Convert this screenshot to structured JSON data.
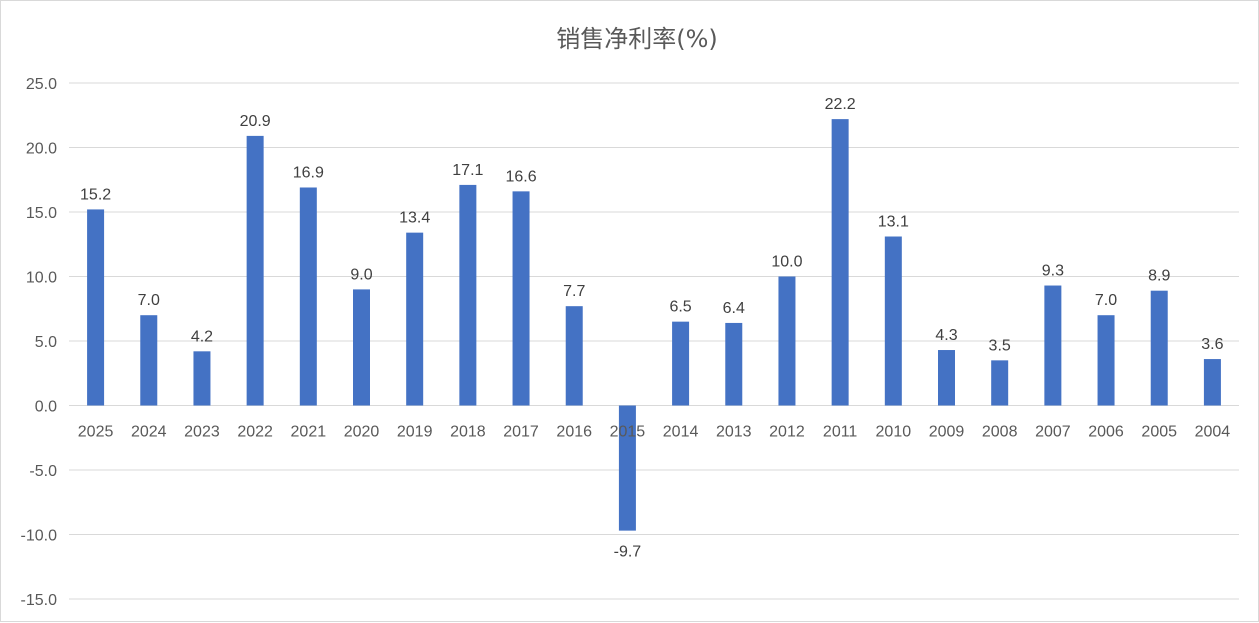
{
  "chart_data": {
    "type": "bar",
    "title": "销售净利率(%)",
    "xlabel": "",
    "ylabel": "",
    "categories": [
      "2025",
      "2024",
      "2023",
      "2022",
      "2021",
      "2020",
      "2019",
      "2018",
      "2017",
      "2016",
      "2015",
      "2014",
      "2013",
      "2012",
      "2011",
      "2010",
      "2009",
      "2008",
      "2007",
      "2006",
      "2005",
      "2004"
    ],
    "values": [
      15.2,
      7.0,
      4.2,
      20.9,
      16.9,
      9.0,
      13.4,
      17.1,
      16.6,
      7.7,
      -9.7,
      6.5,
      6.4,
      10.0,
      22.2,
      13.1,
      4.3,
      3.5,
      9.3,
      7.0,
      8.9,
      3.6
    ],
    "value_labels": [
      "15.2",
      "7.0",
      "4.2",
      "20.9",
      "16.9",
      "9.0",
      "13.4",
      "17.1",
      "16.6",
      "7.7",
      "-9.7",
      "6.5",
      "6.4",
      "10.0",
      "22.2",
      "13.1",
      "4.3",
      "3.5",
      "9.3",
      "7.0",
      "8.9",
      "3.6"
    ],
    "ylim": [
      -15,
      25
    ],
    "yticks": [
      25,
      20,
      15,
      10,
      5,
      0,
      -5,
      -10,
      -15
    ],
    "ytick_labels": [
      "25.0",
      "20.0",
      "15.0",
      "10.0",
      "5.0",
      "0.0",
      "-5.0",
      "-10.0",
      "-15.0"
    ],
    "grid": true,
    "legend": "none",
    "bar_color": "#4472C4",
    "grid_color": "#d9d9d9"
  }
}
